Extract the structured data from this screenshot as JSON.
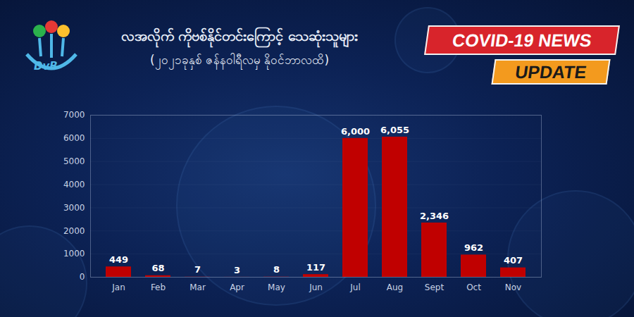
{
  "chart_data": {
    "type": "bar",
    "title": "လအလိုက် ကိုဗစ်နိုင်တင်းကြောင့် သေဆုံးသူများ",
    "subtitle": "(၂၀၂၁ခုနှစ် ဇန်နဝါရီလမှ နိုဝင်ဘာလထိ)",
    "annotations": [
      "COVID-19 NEWS",
      "UPDATE",
      "DvB"
    ],
    "categories": [
      "Jan",
      "Feb",
      "Mar",
      "Apr",
      "May",
      "Jun",
      "Jul",
      "Aug",
      "Sept",
      "Oct",
      "Nov"
    ],
    "values": [
      449,
      68,
      7,
      3,
      8,
      117,
      6000,
      6055,
      2346,
      962,
      407
    ],
    "value_labels": [
      "449",
      "68",
      "7",
      "3",
      "8",
      "117",
      "6,000",
      "6,055",
      "2,346",
      "962",
      "407"
    ],
    "color": "#c00000",
    "ylim": [
      0,
      7000
    ],
    "yticks": [
      0,
      1000,
      2000,
      3000,
      4000,
      5000,
      6000,
      7000
    ],
    "grid": true,
    "data_labels": true
  }
}
